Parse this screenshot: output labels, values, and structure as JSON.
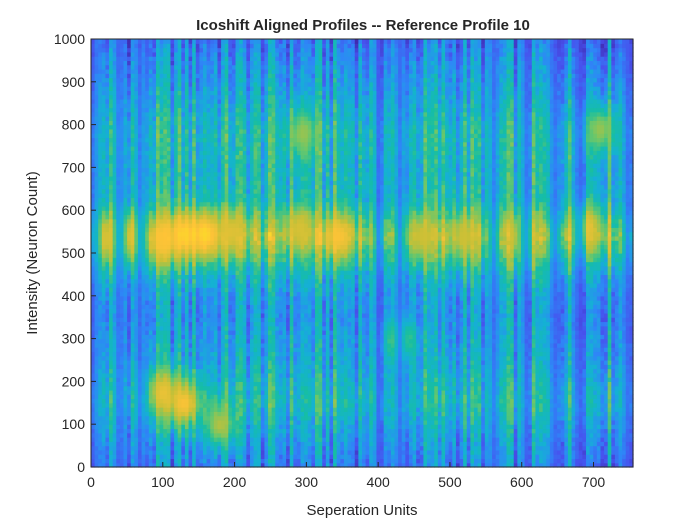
{
  "chart_data": {
    "type": "heatmap",
    "title": "Icoshift Aligned Profiles -- Reference Profile 10",
    "xlabel": "Seperation Units",
    "ylabel": "Intensity (Neuron Count)",
    "xlim": [
      0,
      755
    ],
    "ylim": [
      0,
      1000
    ],
    "xticks": [
      0,
      100,
      200,
      300,
      400,
      500,
      600,
      700
    ],
    "yticks": [
      0,
      100,
      200,
      300,
      400,
      500,
      600,
      700,
      800,
      900,
      1000
    ],
    "colormap": "parula",
    "color_range": [
      0,
      1
    ],
    "grid": false,
    "legend": "none",
    "band_profile": [
      {
        "y": 0,
        "v": 0.25
      },
      {
        "y": 50,
        "v": 0.3
      },
      {
        "y": 100,
        "v": 0.38
      },
      {
        "y": 150,
        "v": 0.46
      },
      {
        "y": 200,
        "v": 0.42
      },
      {
        "y": 250,
        "v": 0.36
      },
      {
        "y": 300,
        "v": 0.34
      },
      {
        "y": 350,
        "v": 0.3
      },
      {
        "y": 400,
        "v": 0.33
      },
      {
        "y": 450,
        "v": 0.42
      },
      {
        "y": 500,
        "v": 0.58
      },
      {
        "y": 540,
        "v": 0.72
      },
      {
        "y": 580,
        "v": 0.58
      },
      {
        "y": 620,
        "v": 0.45
      },
      {
        "y": 700,
        "v": 0.44
      },
      {
        "y": 780,
        "v": 0.46
      },
      {
        "y": 850,
        "v": 0.38
      },
      {
        "y": 930,
        "v": 0.3
      },
      {
        "y": 1000,
        "v": 0.22
      }
    ],
    "hotspots": [
      {
        "x": 20,
        "y": 535,
        "v": 0.78
      },
      {
        "x": 60,
        "y": 540,
        "v": 0.8
      },
      {
        "x": 100,
        "y": 530,
        "v": 0.86
      },
      {
        "x": 130,
        "y": 545,
        "v": 0.9
      },
      {
        "x": 160,
        "y": 545,
        "v": 0.92
      },
      {
        "x": 195,
        "y": 550,
        "v": 0.8
      },
      {
        "x": 290,
        "y": 560,
        "v": 0.78
      },
      {
        "x": 345,
        "y": 540,
        "v": 0.86
      },
      {
        "x": 460,
        "y": 540,
        "v": 0.76
      },
      {
        "x": 520,
        "y": 540,
        "v": 0.76
      },
      {
        "x": 600,
        "y": 540,
        "v": 0.74
      },
      {
        "x": 690,
        "y": 560,
        "v": 0.82
      },
      {
        "x": 100,
        "y": 175,
        "v": 0.82
      },
      {
        "x": 130,
        "y": 150,
        "v": 0.86
      },
      {
        "x": 180,
        "y": 100,
        "v": 0.72
      },
      {
        "x": 295,
        "y": 780,
        "v": 0.68
      },
      {
        "x": 710,
        "y": 790,
        "v": 0.68
      },
      {
        "x": 430,
        "y": 300,
        "v": 0.66
      }
    ],
    "cold_columns": [
      {
        "x": 5,
        "v": 0.06
      },
      {
        "x": 40,
        "v": 0.12
      },
      {
        "x": 70,
        "v": 0.14
      },
      {
        "x": 400,
        "v": 0.1
      },
      {
        "x": 430,
        "v": 0.12
      },
      {
        "x": 560,
        "v": 0.12
      },
      {
        "x": 605,
        "v": 0.14
      },
      {
        "x": 645,
        "v": 0.08
      },
      {
        "x": 680,
        "v": 0.1
      },
      {
        "x": 748,
        "v": 0.1
      }
    ],
    "n_columns": 150,
    "n_rows": 100
  }
}
